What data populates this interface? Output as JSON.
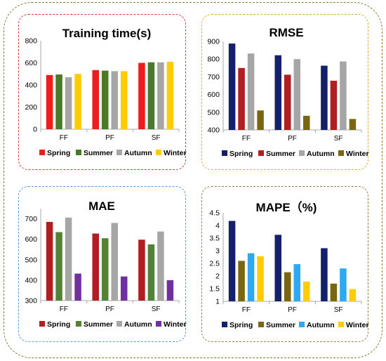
{
  "chart_data": [
    {
      "type": "bar",
      "title": "Training time(s)",
      "categories": [
        "FF",
        "PF",
        "SF"
      ],
      "ylim": [
        0,
        800
      ],
      "yticks": [
        0,
        200,
        400,
        600,
        800
      ],
      "legend": "bottom",
      "series": [
        {
          "name": "Spring",
          "color": "#ee1c1c",
          "values": [
            490,
            535,
            600
          ]
        },
        {
          "name": "Summer",
          "color": "#4a7a28",
          "values": [
            495,
            530,
            605
          ]
        },
        {
          "name": "Autumn",
          "color": "#a6a6a6",
          "values": [
            470,
            525,
            605
          ]
        },
        {
          "name": "Winter",
          "color": "#ffcc00",
          "values": [
            500,
            525,
            610
          ]
        }
      ]
    },
    {
      "type": "bar",
      "title": "RMSE",
      "categories": [
        "FF",
        "PF",
        "SF"
      ],
      "ylim": [
        400,
        900
      ],
      "yticks": [
        400,
        500,
        600,
        700,
        800,
        900
      ],
      "legend": "bottom",
      "series": [
        {
          "name": "Spring",
          "color": "#14206a",
          "values": [
            888,
            822,
            763
          ]
        },
        {
          "name": "Summer",
          "color": "#b01e22",
          "values": [
            750,
            712,
            678
          ]
        },
        {
          "name": "Autumn",
          "color": "#a6a6a6",
          "values": [
            832,
            800,
            787
          ]
        },
        {
          "name": "Winter",
          "color": "#7a6610",
          "values": [
            510,
            480,
            462
          ]
        }
      ]
    },
    {
      "type": "bar",
      "title": "MAE",
      "categories": [
        "FF",
        "PF",
        "SF"
      ],
      "ylim": [
        300,
        750
      ],
      "yticks": [
        300,
        400,
        500,
        600,
        700
      ],
      "legend": "bottom",
      "series": [
        {
          "name": "Spring",
          "color": "#b01e22",
          "values": [
            685,
            628,
            598
          ]
        },
        {
          "name": "Summer",
          "color": "#548235",
          "values": [
            635,
            605,
            575
          ]
        },
        {
          "name": "Autumn",
          "color": "#a6a6a6",
          "values": [
            706,
            680,
            638
          ]
        },
        {
          "name": "Winter",
          "color": "#7030a0",
          "values": [
            432,
            418,
            400
          ]
        }
      ]
    },
    {
      "type": "bar",
      "title": "MAPE（%)",
      "categories": [
        "FF",
        "PF",
        "SF"
      ],
      "ylim": [
        1,
        4.5
      ],
      "yticks": [
        1,
        1.5,
        2,
        2.5,
        3,
        3.5,
        4,
        4.5
      ],
      "legend": "bottom",
      "series": [
        {
          "name": "Spring",
          "color": "#14206a",
          "values": [
            4.18,
            3.63,
            3.1
          ]
        },
        {
          "name": "Summer",
          "color": "#7a6610",
          "values": [
            2.6,
            2.15,
            1.7
          ]
        },
        {
          "name": "Autumn",
          "color": "#2ea8f0",
          "values": [
            2.9,
            2.47,
            2.3
          ]
        },
        {
          "name": "Winter",
          "color": "#ffcc00",
          "values": [
            2.78,
            1.78,
            1.48
          ]
        }
      ]
    }
  ]
}
